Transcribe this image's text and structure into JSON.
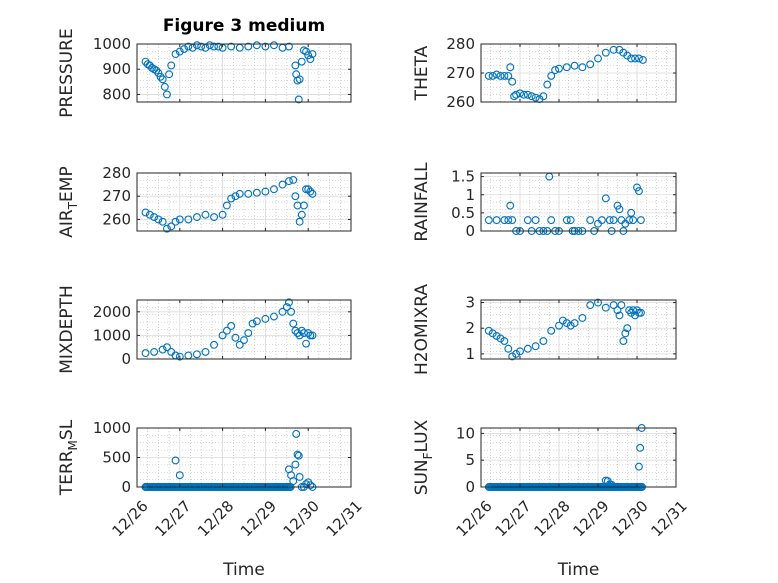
{
  "figure": {
    "title": "Figure 3 medium"
  },
  "colors": {
    "marker": "#0072BD",
    "axis": "#262626",
    "grid": "#b3b3b3"
  },
  "chart_data": [
    {
      "type": "scatter",
      "title": "Figure 3 medium",
      "ylabel": "PRESSURE",
      "xlabel": "",
      "ylim": [
        770,
        1000
      ],
      "yticks": [
        800,
        900,
        1000
      ],
      "xticklabels": [],
      "grid": "on",
      "x": [
        26.2,
        26.25,
        26.3,
        26.35,
        26.4,
        26.45,
        26.5,
        26.55,
        26.6,
        26.65,
        26.7,
        26.75,
        26.8,
        26.9,
        27.0,
        27.1,
        27.2,
        27.3,
        27.4,
        27.5,
        27.6,
        27.7,
        27.8,
        27.9,
        28.0,
        28.2,
        28.4,
        28.6,
        28.8,
        29.0,
        29.2,
        29.4,
        29.55,
        29.7,
        29.72,
        29.75,
        29.78,
        29.8,
        29.85,
        29.9,
        29.95,
        30.0,
        30.05,
        30.1
      ],
      "y": [
        930,
        920,
        915,
        905,
        900,
        895,
        885,
        870,
        860,
        830,
        800,
        880,
        915,
        960,
        970,
        980,
        990,
        985,
        995,
        990,
        985,
        995,
        990,
        990,
        985,
        990,
        985,
        990,
        995,
        990,
        995,
        985,
        990,
        915,
        880,
        855,
        780,
        860,
        930,
        975,
        970,
        955,
        940,
        960
      ]
    },
    {
      "type": "scatter",
      "ylabel": "THETA",
      "xlabel": "",
      "ylim": [
        260,
        280
      ],
      "yticks": [
        260,
        270,
        280
      ],
      "xticklabels": [],
      "grid": "on",
      "x": [
        26.2,
        26.3,
        26.4,
        26.5,
        26.6,
        26.7,
        26.75,
        26.8,
        26.85,
        26.9,
        27.0,
        27.1,
        27.2,
        27.3,
        27.4,
        27.5,
        27.6,
        27.7,
        27.8,
        27.9,
        28.0,
        28.2,
        28.4,
        28.6,
        28.8,
        29.0,
        29.2,
        29.4,
        29.55,
        29.65,
        29.75,
        29.85,
        29.95,
        30.05,
        30.15
      ],
      "y": [
        269,
        269,
        269.5,
        269,
        269,
        269,
        272,
        267,
        262,
        262.5,
        263,
        262.5,
        262.5,
        262,
        261.5,
        261,
        262,
        266,
        269,
        271,
        271.5,
        272,
        272.5,
        272,
        273,
        275,
        277,
        278,
        278,
        277,
        276,
        275,
        275,
        275,
        274.5
      ]
    },
    {
      "type": "scatter",
      "ylabel": "AIR_TEMP",
      "xlabel": "",
      "ylim": [
        255,
        280
      ],
      "yticks": [
        260,
        270,
        280
      ],
      "xticklabels": [],
      "grid": "on",
      "x": [
        26.2,
        26.3,
        26.4,
        26.5,
        26.6,
        26.7,
        26.8,
        26.9,
        27.0,
        27.2,
        27.4,
        27.6,
        27.8,
        28.0,
        28.1,
        28.2,
        28.3,
        28.4,
        28.6,
        28.8,
        29.0,
        29.2,
        29.4,
        29.55,
        29.65,
        29.7,
        29.75,
        29.8,
        29.85,
        29.9,
        29.95,
        30.0,
        30.05,
        30.1
      ],
      "y": [
        263,
        262,
        261,
        260,
        259,
        256,
        257,
        259,
        260,
        260,
        261,
        262,
        261,
        262,
        266,
        269,
        270,
        271,
        271,
        271.5,
        272,
        273,
        275,
        276.5,
        277,
        270,
        266,
        259,
        262,
        266,
        273,
        273,
        272,
        271
      ]
    },
    {
      "type": "scatter",
      "ylabel": "RAINFALL",
      "xlabel": "",
      "ylim": [
        0,
        1.6
      ],
      "yticks": [
        0,
        0.5,
        1,
        1.5
      ],
      "xticklabels": [],
      "grid": "on",
      "x": [
        26.2,
        26.4,
        26.6,
        26.7,
        26.75,
        26.8,
        26.9,
        27.0,
        27.2,
        27.3,
        27.4,
        27.5,
        27.6,
        27.7,
        27.75,
        27.8,
        27.9,
        28.0,
        28.2,
        28.3,
        28.35,
        28.4,
        28.5,
        28.6,
        28.8,
        28.9,
        29.0,
        29.1,
        29.2,
        29.3,
        29.35,
        29.4,
        29.5,
        29.55,
        29.6,
        29.65,
        29.7,
        29.8,
        29.85,
        29.9,
        30.0,
        30.05,
        30.1
      ],
      "y": [
        0.3,
        0.3,
        0.3,
        0.3,
        0.7,
        0.3,
        0,
        0,
        0.3,
        0,
        0.3,
        0,
        0,
        0,
        1.5,
        0.3,
        0,
        0,
        0.3,
        0.3,
        0,
        0,
        0,
        0,
        0.3,
        0,
        0.2,
        0.3,
        0.9,
        0.3,
        0,
        0.3,
        0.7,
        0.6,
        0.3,
        0,
        0.2,
        0.3,
        0.5,
        0.3,
        1.2,
        1.1,
        0.3
      ]
    },
    {
      "type": "scatter",
      "ylabel": "MIXDEPTH",
      "xlabel": "",
      "ylim": [
        0,
        2500
      ],
      "yticks": [
        0,
        1000,
        2000
      ],
      "xticklabels": [],
      "grid": "on",
      "x": [
        26.2,
        26.4,
        26.6,
        26.7,
        26.8,
        26.9,
        27.0,
        27.2,
        27.4,
        27.6,
        27.8,
        28.0,
        28.1,
        28.2,
        28.3,
        28.4,
        28.5,
        28.6,
        28.7,
        28.8,
        29.0,
        29.2,
        29.4,
        29.5,
        29.55,
        29.6,
        29.65,
        29.7,
        29.75,
        29.8,
        29.85,
        29.9,
        29.95,
        30.0,
        30.05,
        30.1
      ],
      "y": [
        250,
        300,
        400,
        500,
        300,
        150,
        100,
        150,
        200,
        300,
        600,
        1000,
        1200,
        1400,
        900,
        600,
        800,
        1100,
        1500,
        1600,
        1700,
        1800,
        2000,
        2200,
        2400,
        2000,
        1500,
        1200,
        1100,
        1000,
        1200,
        1100,
        650,
        1100,
        1000,
        1000
      ]
    },
    {
      "type": "scatter",
      "ylabel": "H2OMIXRA",
      "xlabel": "",
      "ylim": [
        0.8,
        3.1
      ],
      "yticks": [
        1,
        2,
        3
      ],
      "xticklabels": [],
      "grid": "on",
      "x": [
        26.2,
        26.3,
        26.4,
        26.5,
        26.6,
        26.7,
        26.8,
        26.9,
        27.0,
        27.2,
        27.4,
        27.6,
        27.8,
        28.0,
        28.1,
        28.2,
        28.3,
        28.4,
        28.6,
        28.8,
        29.0,
        29.2,
        29.4,
        29.5,
        29.55,
        29.6,
        29.65,
        29.7,
        29.75,
        29.8,
        29.85,
        29.9,
        29.95,
        30.0,
        30.05,
        30.1
      ],
      "y": [
        1.9,
        1.8,
        1.7,
        1.6,
        1.5,
        1.2,
        0.9,
        1.0,
        1.1,
        1.2,
        1.3,
        1.5,
        1.9,
        2.1,
        2.3,
        2.2,
        2.1,
        2.2,
        2.4,
        2.9,
        3.0,
        2.8,
        2.9,
        2.7,
        2.5,
        2.9,
        1.5,
        1.8,
        2.0,
        2.7,
        2.6,
        2.7,
        2.5,
        2.7,
        2.6,
        2.6
      ]
    },
    {
      "type": "scatter",
      "ylabel": "TERR_MSL",
      "xlabel": "Time",
      "ylim": [
        0,
        1000
      ],
      "yticks": [
        0,
        500,
        1000
      ],
      "xlim": [
        26,
        31
      ],
      "xticks": [
        26,
        27,
        28,
        29,
        30,
        31
      ],
      "xticklabels": [
        "12/26",
        "12/27",
        "12/28",
        "12/29",
        "12/30",
        "12/31"
      ],
      "grid": "on",
      "x": [
        26.2,
        26.4,
        26.6,
        26.8,
        26.9,
        27.0,
        27.2,
        27.5,
        27.8,
        28.0,
        28.3,
        28.6,
        28.9,
        29.2,
        29.5,
        29.55,
        29.6,
        29.65,
        29.7,
        29.72,
        29.75,
        29.78,
        29.8,
        29.85,
        29.9,
        29.95,
        30.0,
        30.05,
        30.1
      ],
      "y": [
        0,
        0,
        0,
        0,
        450,
        200,
        0,
        0,
        0,
        0,
        0,
        0,
        0,
        0,
        0,
        300,
        200,
        100,
        380,
        900,
        550,
        530,
        170,
        0,
        0,
        50,
        80,
        30,
        0
      ],
      "jitter_fill": [
        26.2,
        29.6
      ]
    },
    {
      "type": "scatter",
      "ylabel": "SUN_FLUX",
      "xlabel": "Time",
      "ylim": [
        0,
        11
      ],
      "yticks": [
        0,
        5,
        10
      ],
      "xlim": [
        26,
        31
      ],
      "xticks": [
        26,
        27,
        28,
        29,
        30,
        31
      ],
      "xticklabels": [
        "12/26",
        "12/27",
        "12/28",
        "12/29",
        "12/30",
        "12/31"
      ],
      "grid": "on",
      "x": [
        29.2,
        29.25,
        29.3,
        29.35,
        30.05,
        30.08,
        30.12
      ],
      "y": [
        1.2,
        1.1,
        0.5,
        0.4,
        3.8,
        7.3,
        11
      ],
      "jitter_fill": [
        26.2,
        30.15
      ]
    }
  ]
}
